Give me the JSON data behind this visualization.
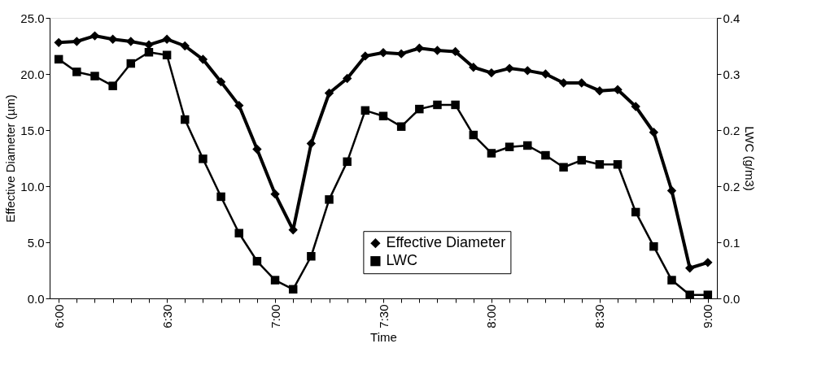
{
  "chart_data": {
    "type": "line",
    "xlabel": "Time",
    "ylabel": "Effective Diameter (µm)",
    "y2label": "LWC (g/m3)",
    "x": [
      6,
      6.0833,
      6.1667,
      6.25,
      6.3333,
      6.4167,
      6.5,
      6.5833,
      6.6667,
      6.75,
      6.8333,
      6.9167,
      7,
      7.0833,
      7.1667,
      7.25,
      7.3333,
      7.4167,
      7.5,
      7.5833,
      7.6667,
      7.75,
      7.8333,
      7.9167,
      8,
      8.0833,
      8.1667,
      8.25,
      8.3333,
      8.4167,
      8.5,
      8.5833,
      8.6667,
      8.75,
      8.8333,
      8.9167,
      9
    ],
    "series": [
      {
        "name": "Effective Diameter",
        "color": "#000000",
        "marker": "diamond",
        "values": [
          22.8,
          22.9,
          23.4,
          23.1,
          22.9,
          22.6,
          23.1,
          22.5,
          21.3,
          19.3,
          17.2,
          13.3,
          9.3,
          6.1,
          13.8,
          18.3,
          19.6,
          21.6,
          21.9,
          21.8,
          22.3,
          22.1,
          22.0,
          20.6,
          20.1,
          20.5,
          20.3,
          20.0,
          19.2,
          19.2,
          18.5,
          18.6,
          17.1,
          14.8,
          9.6,
          2.7,
          3.2
        ]
      },
      {
        "name": "LWC",
        "color": "#000000",
        "marker": "square",
        "axis": "y2",
        "values": [
          0.341,
          0.323,
          0.317,
          0.303,
          0.335,
          0.351,
          0.347,
          0.255,
          0.199,
          0.145,
          0.093,
          0.053,
          0.026,
          0.013,
          0.06,
          0.141,
          0.195,
          0.268,
          0.26,
          0.245,
          0.27,
          0.276,
          0.276,
          0.233,
          0.207,
          0.216,
          0.218,
          0.204,
          0.187,
          0.197,
          0.191,
          0.191,
          0.123,
          0.074,
          0.026,
          0.005,
          0.005
        ]
      }
    ],
    "xlim": [
      5.958,
      9.042
    ],
    "xticks": [
      {
        "value": 6,
        "label": "6:00"
      },
      {
        "value": 6.0833,
        "label": null
      },
      {
        "value": 6.1667,
        "label": null
      },
      {
        "value": 6.25,
        "label": null
      },
      {
        "value": 6.3333,
        "label": null
      },
      {
        "value": 6.4167,
        "label": null
      },
      {
        "value": 6.5,
        "label": "6:30"
      },
      {
        "value": 6.5833,
        "label": null
      },
      {
        "value": 6.6667,
        "label": null
      },
      {
        "value": 6.75,
        "label": null
      },
      {
        "value": 6.8333,
        "label": null
      },
      {
        "value": 6.9167,
        "label": null
      },
      {
        "value": 7,
        "label": "7:00"
      },
      {
        "value": 7.0833,
        "label": null
      },
      {
        "value": 7.1667,
        "label": null
      },
      {
        "value": 7.25,
        "label": null
      },
      {
        "value": 7.3333,
        "label": null
      },
      {
        "value": 7.4167,
        "label": null
      },
      {
        "value": 7.5,
        "label": "7:30"
      },
      {
        "value": 7.5833,
        "label": null
      },
      {
        "value": 7.6667,
        "label": null
      },
      {
        "value": 7.75,
        "label": null
      },
      {
        "value": 7.8333,
        "label": null
      },
      {
        "value": 7.9167,
        "label": null
      },
      {
        "value": 8,
        "label": "8:00"
      },
      {
        "value": 8.0833,
        "label": null
      },
      {
        "value": 8.1667,
        "label": null
      },
      {
        "value": 8.25,
        "label": null
      },
      {
        "value": 8.3333,
        "label": null
      },
      {
        "value": 8.4167,
        "label": null
      },
      {
        "value": 8.5,
        "label": "8:30"
      },
      {
        "value": 8.5833,
        "label": null
      },
      {
        "value": 8.6667,
        "label": null
      },
      {
        "value": 8.75,
        "label": null
      },
      {
        "value": 8.8333,
        "label": null
      },
      {
        "value": 8.9167,
        "label": null
      },
      {
        "value": 9,
        "label": "9:00"
      }
    ],
    "ylim": [
      0,
      25
    ],
    "yticks": [
      {
        "value": 0,
        "label": "0.0"
      },
      {
        "value": 5,
        "label": "5.0"
      },
      {
        "value": 10,
        "label": "10.0"
      },
      {
        "value": 15,
        "label": "15.0"
      },
      {
        "value": 20,
        "label": "20.0"
      },
      {
        "value": 25,
        "label": "25.0"
      }
    ],
    "y2lim": [
      0,
      0.4
    ],
    "y2ticks": [
      {
        "value": 0,
        "label": "0.0"
      },
      {
        "value": 0.08,
        "label": "0.1"
      },
      {
        "value": 0.16,
        "label": "0.2"
      },
      {
        "value": 0.24,
        "label": "0.2"
      },
      {
        "value": 0.32,
        "label": "0.3"
      },
      {
        "value": 0.4,
        "label": "0.4"
      }
    ],
    "grid": false,
    "legend": "bottom right",
    "line_style": "solid"
  }
}
